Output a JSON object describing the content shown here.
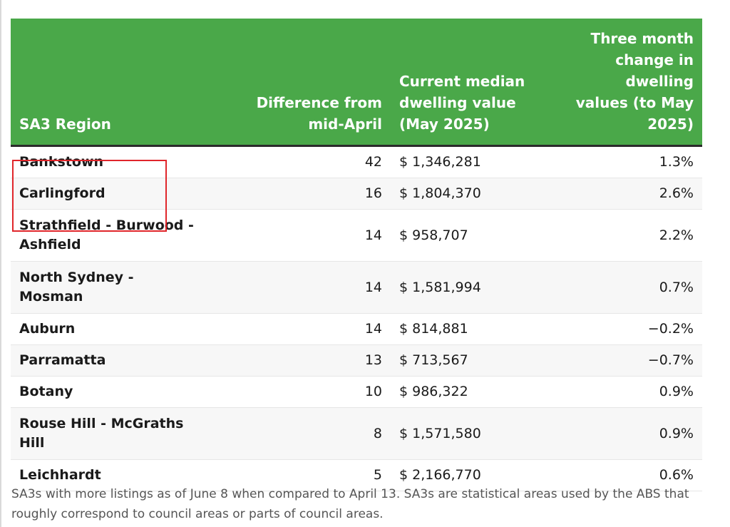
{
  "chart_data": {
    "type": "table",
    "columns": [
      "SA3 Region",
      "Difference from mid-April",
      "Current median dwelling value (May 2025)",
      "Three month change in dwelling values (to May 2025)"
    ],
    "rows": [
      {
        "region": "Bankstown",
        "difference": "42",
        "value": "$ 1,346,281",
        "change": "1.3%"
      },
      {
        "region": "Carlingford",
        "difference": "16",
        "value": "$ 1,804,370",
        "change": "2.6%"
      },
      {
        "region": "Strathfield - Burwood - Ashfield",
        "difference": "14",
        "value": "$ 958,707",
        "change": "2.2%"
      },
      {
        "region": "North Sydney - Mosman",
        "difference": "14",
        "value": "$ 1,581,994",
        "change": "0.7%"
      },
      {
        "region": "Auburn",
        "difference": "14",
        "value": "$ 814,881",
        "change": "−0.2%"
      },
      {
        "region": "Parramatta",
        "difference": "13",
        "value": "$ 713,567",
        "change": "−0.7%"
      },
      {
        "region": "Botany",
        "difference": "10",
        "value": "$ 986,322",
        "change": "0.9%"
      },
      {
        "region": "Rouse Hill - McGraths Hill",
        "difference": "8",
        "value": "$ 1,571,580",
        "change": "0.9%"
      },
      {
        "region": "Leichhardt",
        "difference": "5",
        "value": "$ 2,166,770",
        "change": "0.6%"
      }
    ],
    "footnote": "SA3s with more listings as of June 8 when compared to April 13. SA3s are statistical areas used by the ABS that roughly correspond to council areas or parts of council areas."
  },
  "colors": {
    "header_bg": "#4aa849",
    "header_text": "#ffffff",
    "highlight_border": "#e0262b"
  }
}
